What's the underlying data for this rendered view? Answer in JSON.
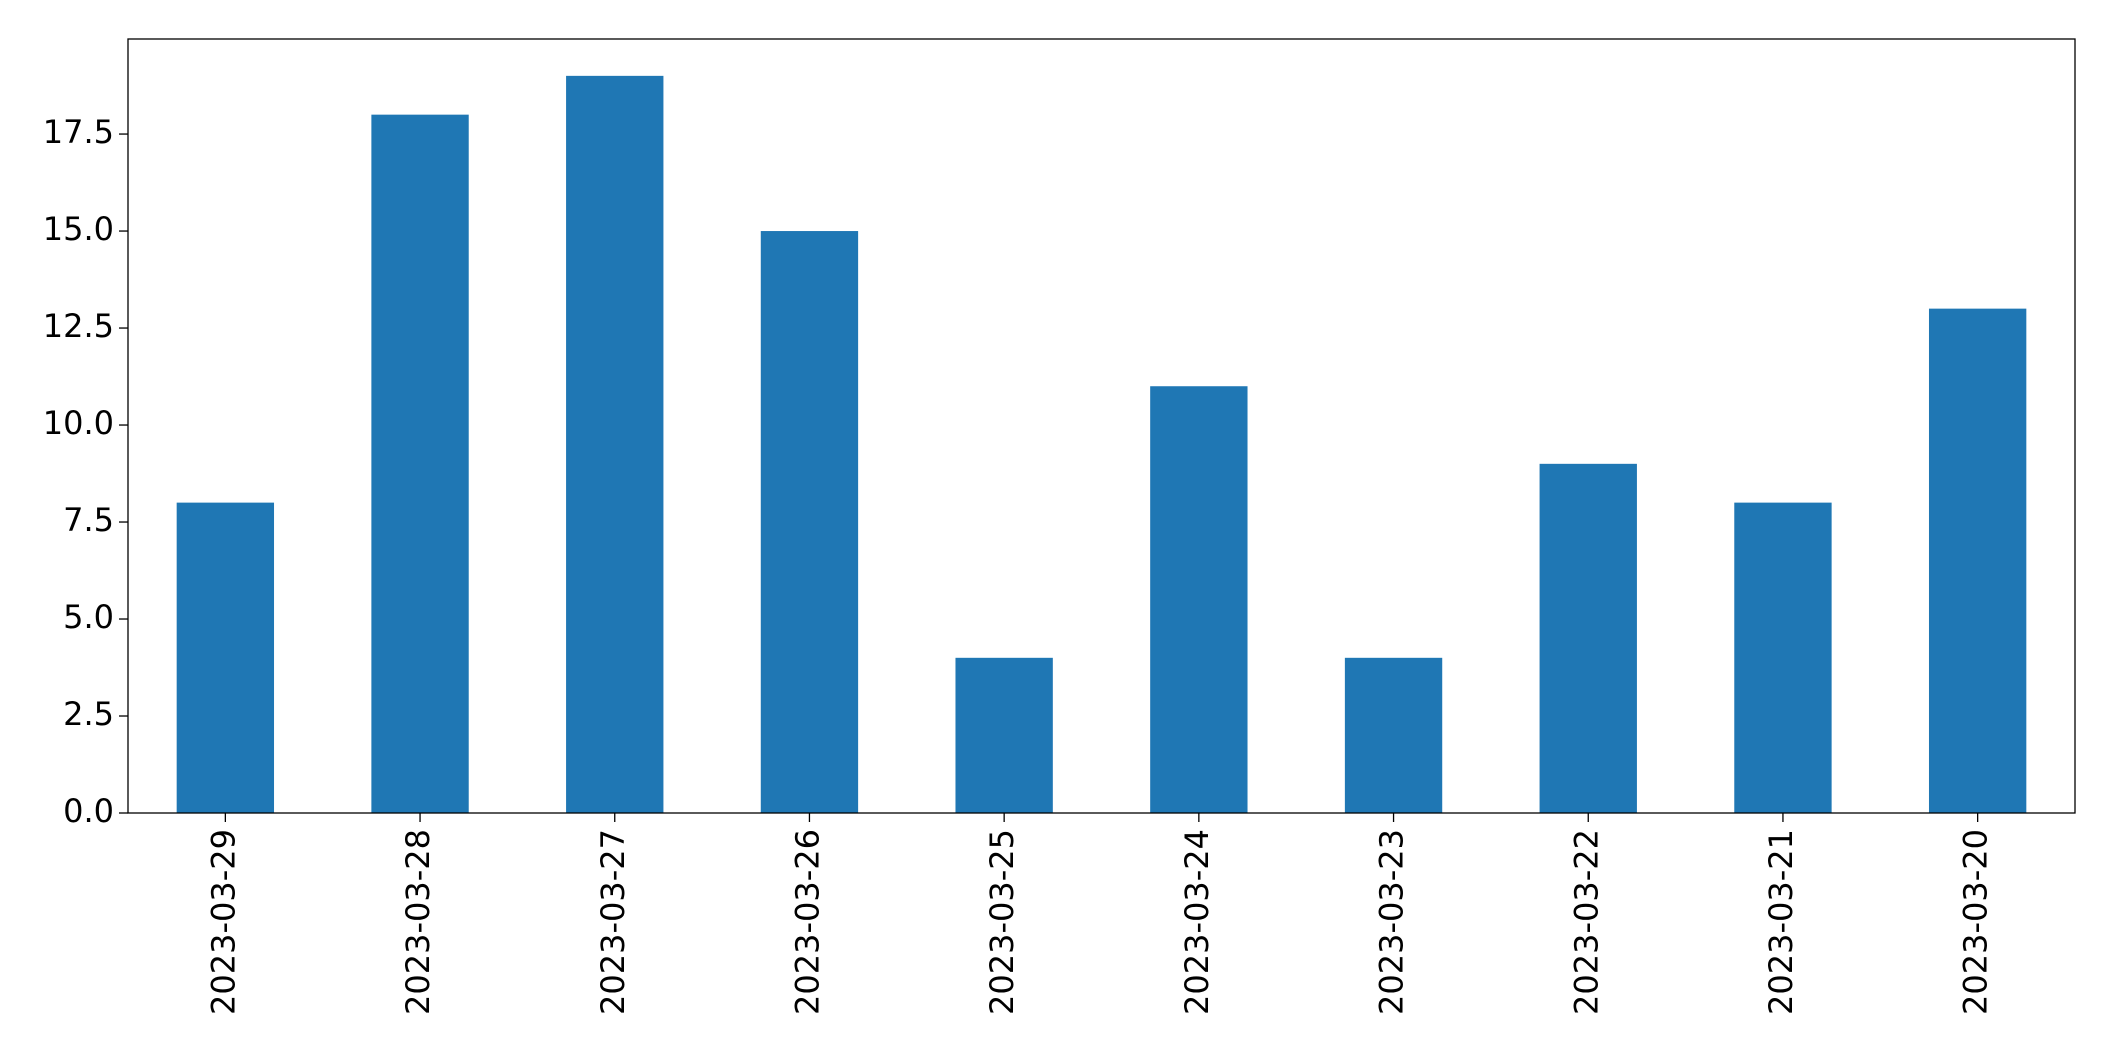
{
  "chart_data": {
    "type": "bar",
    "categories": [
      "2023-03-29",
      "2023-03-28",
      "2023-03-27",
      "2023-03-26",
      "2023-03-25",
      "2023-03-24",
      "2023-03-23",
      "2023-03-22",
      "2023-03-21",
      "2023-03-20"
    ],
    "values": [
      8,
      18,
      19,
      15,
      4,
      11,
      4,
      9,
      8,
      13
    ],
    "color": "#1f77b4",
    "ylim": [
      0,
      19.95
    ],
    "yticks": [
      {
        "value": 0,
        "label": "0.0"
      },
      2.5,
      {
        "value": 5,
        "label": "5.0"
      },
      7.5,
      {
        "value": 10,
        "label": "10.0"
      },
      12.5,
      {
        "value": 15,
        "label": "15.0"
      },
      17.5
    ],
    "grid": false
  }
}
